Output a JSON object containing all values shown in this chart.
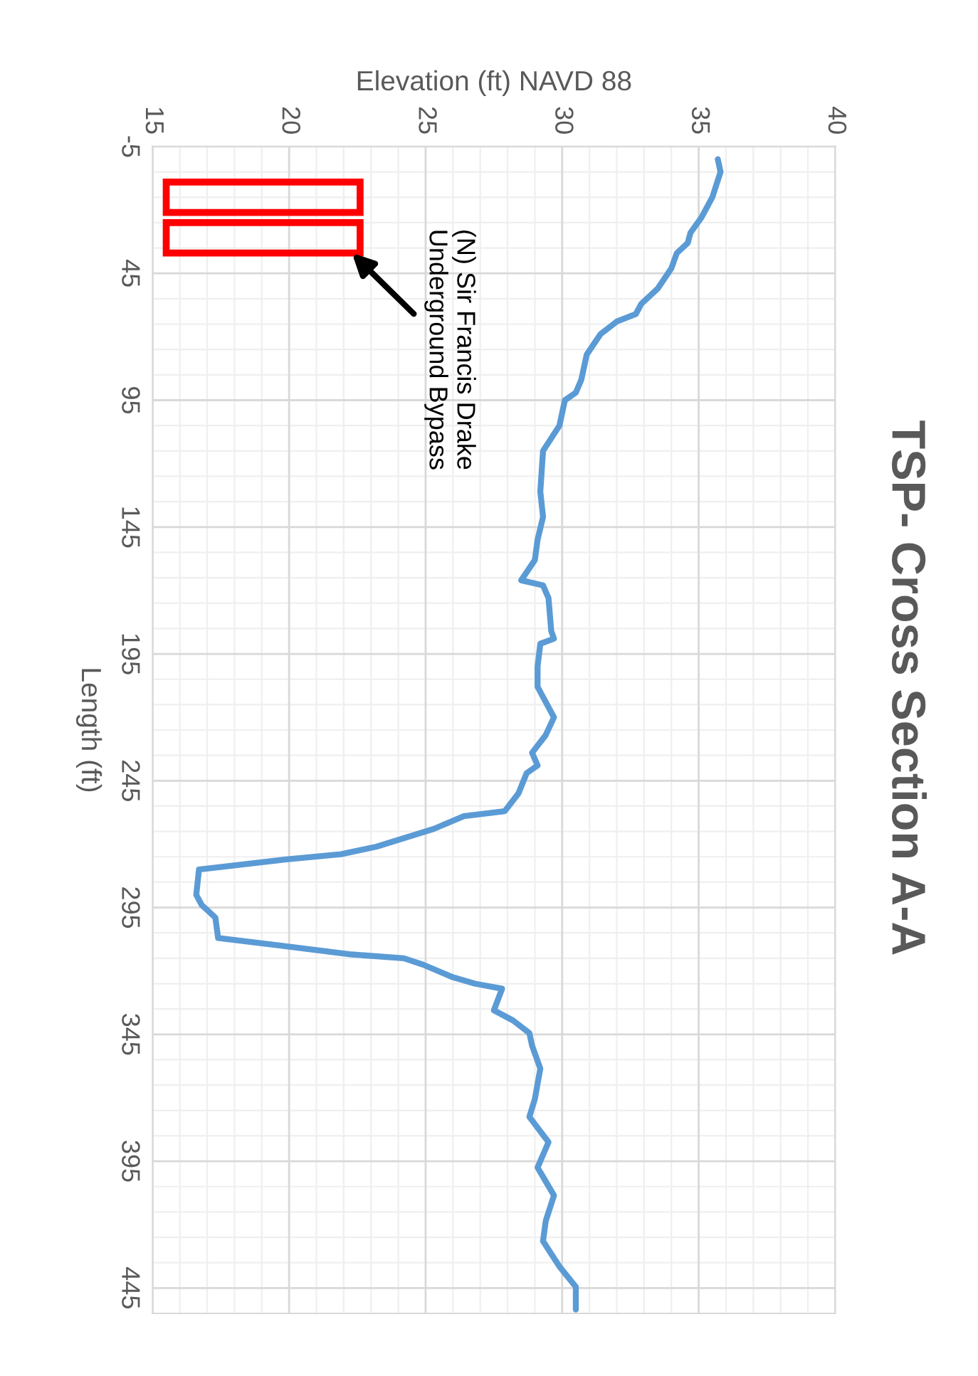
{
  "chart_data": {
    "type": "line",
    "title": "TSP- Cross Section A-A",
    "xlabel": "Elevation (ft) NAVD 88",
    "ylabel": "Length (ft)",
    "x": [
      35.7,
      35.8,
      35.5,
      35.1,
      34.7,
      34.6,
      34.2,
      34.0,
      33.5,
      32.9,
      32.7,
      32.0,
      31.4,
      30.9,
      30.7,
      30.5,
      30.1,
      29.9,
      29.3,
      29.2,
      29.3,
      29.1,
      29.0,
      28.5,
      29.3,
      29.5,
      29.6,
      29.7,
      29.2,
      29.1,
      29.1,
      29.7,
      29.4,
      28.9,
      29.1,
      28.7,
      28.4,
      27.9,
      26.4,
      25.3,
      23.2,
      21.9,
      19.9,
      16.7,
      16.6,
      16.8,
      17.3,
      17.4,
      19.7,
      22.3,
      24.2,
      24.9,
      26.0,
      26.8,
      27.8,
      27.5,
      28.2,
      28.8,
      28.9,
      29.2,
      29.0,
      28.8,
      29.5,
      29.1,
      29.7,
      29.4,
      29.3,
      29.9,
      30.5,
      30.5
    ],
    "series": [
      {
        "color": "#5b9bd5",
        "values": [
          0,
          5,
          15,
          23,
          29,
          33,
          37,
          43,
          51,
          57,
          61,
          64,
          69,
          77,
          87,
          92,
          95,
          105,
          115,
          131,
          141,
          150,
          158,
          166,
          168,
          173,
          186,
          189,
          191,
          200,
          208,
          220,
          227,
          234,
          239,
          242,
          250,
          257,
          259,
          264,
          271,
          274,
          276,
          280,
          290,
          294,
          299,
          307,
          310,
          313.5,
          315,
          317.5,
          322.5,
          325,
          327,
          335.5,
          339.5,
          344.5,
          349.5,
          358.5,
          370.5,
          377.5,
          387.5,
          397.5,
          408.5,
          418.5,
          426.5,
          436.5,
          444.5,
          453.5
        ]
      }
    ],
    "xlim": [
      15,
      40
    ],
    "xticks": [
      15,
      20,
      25,
      30,
      35,
      40
    ],
    "ylim": [
      455,
      -5
    ],
    "yticks": [
      -5,
      45,
      95,
      145,
      195,
      245,
      295,
      345,
      395,
      445
    ],
    "grid": true,
    "annotations": [
      "(N) Sir Francis Drake\nUnderground Bypass"
    ]
  }
}
